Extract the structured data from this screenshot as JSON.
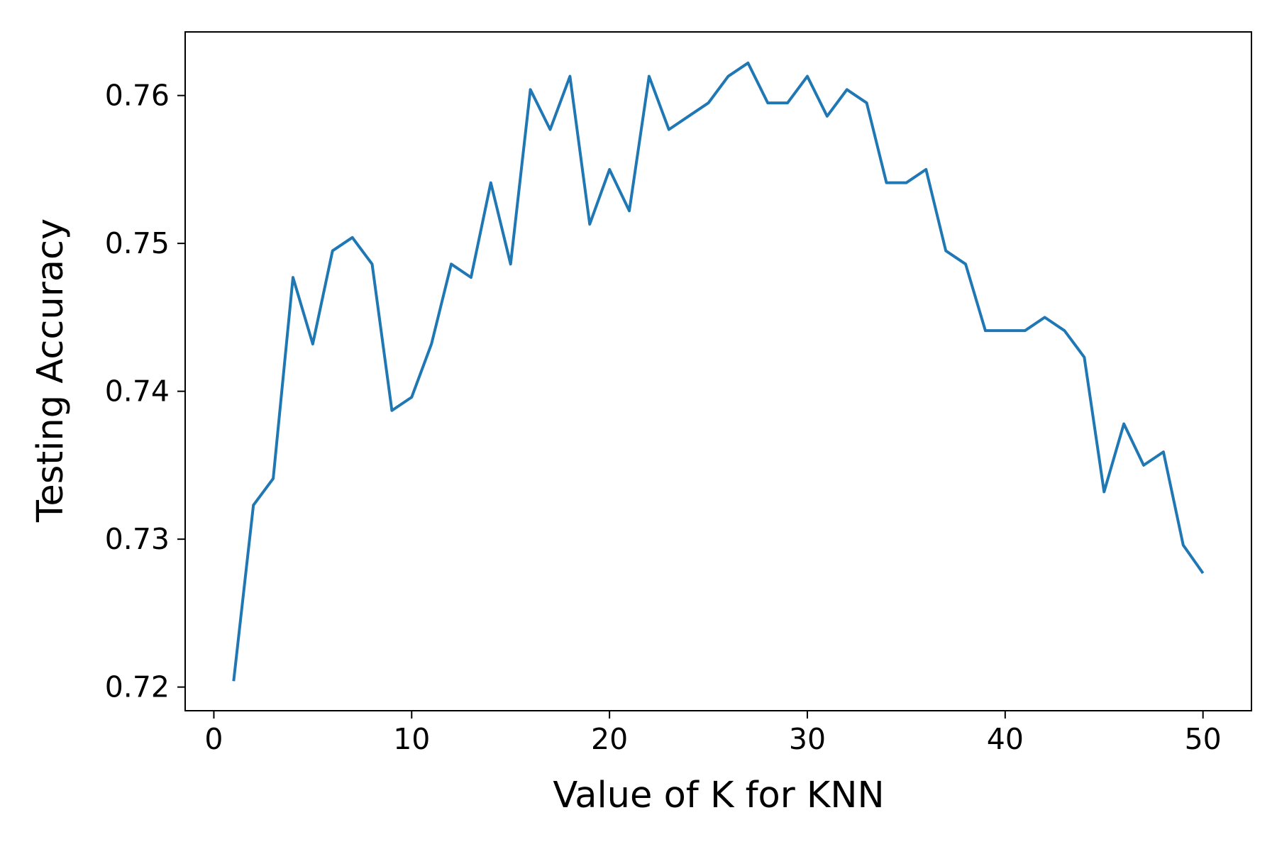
{
  "chart_data": {
    "type": "line",
    "title": "",
    "xlabel": "Value of K for KNN",
    "ylabel": "Testing Accuracy",
    "xlim": [
      -1.45,
      52.45
    ],
    "ylim": [
      0.7184,
      0.7643
    ],
    "x_ticks": [
      0,
      10,
      20,
      30,
      40,
      50
    ],
    "y_ticks": [
      0.72,
      0.73,
      0.74,
      0.75,
      0.76
    ],
    "x_tick_labels": [
      "0",
      "10",
      "20",
      "30",
      "40",
      "50"
    ],
    "y_tick_labels": [
      "0.72",
      "0.73",
      "0.74",
      "0.75",
      "0.76"
    ],
    "grid": false,
    "legend": "none",
    "series": [
      {
        "color": "#1f77b4",
        "x": [
          1,
          2,
          3,
          4,
          5,
          6,
          7,
          8,
          9,
          10,
          11,
          12,
          13,
          14,
          15,
          16,
          17,
          18,
          19,
          20,
          21,
          22,
          23,
          24,
          25,
          26,
          27,
          28,
          29,
          30,
          31,
          32,
          33,
          34,
          35,
          36,
          37,
          38,
          39,
          40,
          41,
          42,
          43,
          44,
          45,
          46,
          47,
          48,
          49,
          50
        ],
        "y": [
          0.7204,
          0.7323,
          0.7341,
          0.7477,
          0.7432,
          0.7495,
          0.7504,
          0.7486,
          0.7387,
          0.7396,
          0.7432,
          0.7486,
          0.7477,
          0.7541,
          0.7486,
          0.7604,
          0.7577,
          0.7613,
          0.7513,
          0.755,
          0.7522,
          0.7613,
          0.7577,
          0.7586,
          0.7595,
          0.7613,
          0.7622,
          0.7595,
          0.7595,
          0.7613,
          0.7586,
          0.7604,
          0.7595,
          0.7541,
          0.7541,
          0.755,
          0.7495,
          0.7486,
          0.7441,
          0.7441,
          0.7441,
          0.745,
          0.7441,
          0.7423,
          0.7332,
          0.7378,
          0.735,
          0.7359,
          0.7296,
          0.7277
        ]
      }
    ]
  }
}
